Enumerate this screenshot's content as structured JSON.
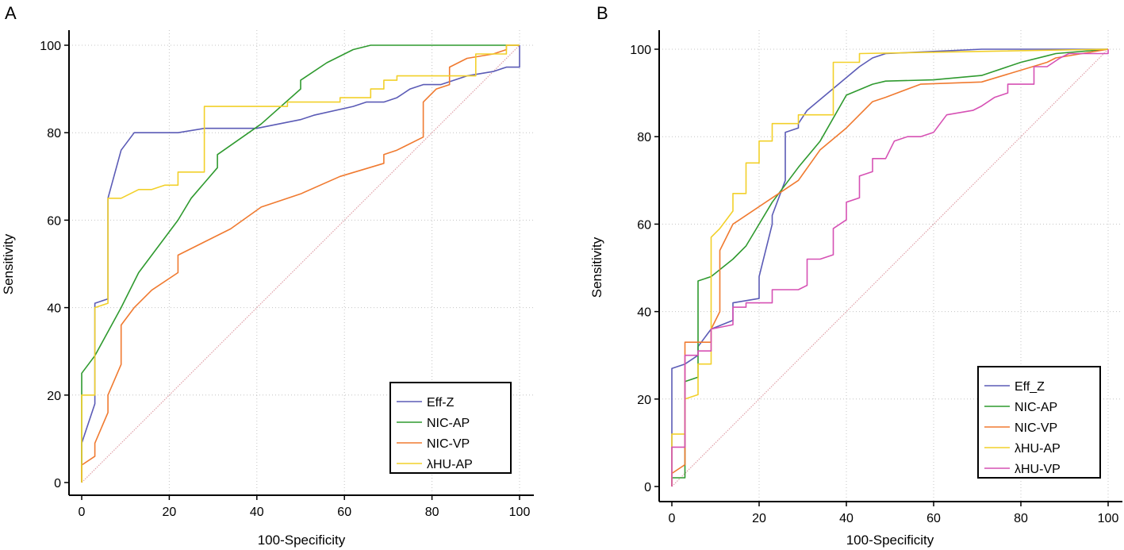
{
  "colors": {
    "eff_z": "#5b5bb6",
    "nic_ap": "#2f9a2f",
    "nic_vp": "#f07a30",
    "lhu_ap": "#f2d02a",
    "lhu_vp": "#d651b4",
    "reference": "#e0a0a8",
    "grid": "#c4c4c4",
    "axis": "#000000"
  },
  "chart_data": [
    {
      "type": "line",
      "panel_label": "A",
      "xlabel": "100-Specificity",
      "ylabel": "Sensitivity",
      "xlim": [
        0,
        100
      ],
      "ylim": [
        0,
        100
      ],
      "xticks": [
        "0",
        "20",
        "40",
        "60",
        "80",
        "100"
      ],
      "yticks": [
        "0",
        "20",
        "40",
        "60",
        "80",
        "100"
      ],
      "grid": true,
      "legend": "bottom-right",
      "reference_line": [
        [
          0,
          0
        ],
        [
          100,
          100
        ]
      ],
      "series": [
        {
          "name": "Eff-Z",
          "color_key": "eff_z",
          "points": [
            [
              0,
              0
            ],
            [
              0,
              9
            ],
            [
              3,
              18
            ],
            [
              3,
              41
            ],
            [
              6,
              42
            ],
            [
              6,
              65
            ],
            [
              9,
              76
            ],
            [
              12,
              80
            ],
            [
              22,
              80
            ],
            [
              28,
              81
            ],
            [
              40,
              81
            ],
            [
              50,
              83
            ],
            [
              53,
              84
            ],
            [
              62,
              86
            ],
            [
              65,
              87
            ],
            [
              69,
              87
            ],
            [
              72,
              88
            ],
            [
              75,
              90
            ],
            [
              78,
              91
            ],
            [
              82,
              91
            ],
            [
              85,
              92
            ],
            [
              88,
              93
            ],
            [
              94,
              94
            ],
            [
              97,
              95
            ],
            [
              100,
              95
            ],
            [
              100,
              100
            ]
          ]
        },
        {
          "name": "NIC-AP",
          "color_key": "nic_ap",
          "points": [
            [
              0,
              0
            ],
            [
              0,
              25
            ],
            [
              3,
              29
            ],
            [
              9,
              40
            ],
            [
              13,
              48
            ],
            [
              19,
              56
            ],
            [
              22,
              60
            ],
            [
              25,
              65
            ],
            [
              31,
              72
            ],
            [
              31,
              75
            ],
            [
              41,
              82
            ],
            [
              50,
              90
            ],
            [
              50,
              92
            ],
            [
              56,
              96
            ],
            [
              62,
              99
            ],
            [
              66,
              100
            ],
            [
              100,
              100
            ]
          ]
        },
        {
          "name": "NIC-VP",
          "color_key": "nic_vp",
          "points": [
            [
              0,
              0
            ],
            [
              0,
              4
            ],
            [
              3,
              6
            ],
            [
              3,
              9
            ],
            [
              6,
              16
            ],
            [
              6,
              20
            ],
            [
              9,
              27
            ],
            [
              9,
              36
            ],
            [
              12,
              40
            ],
            [
              16,
              44
            ],
            [
              22,
              48
            ],
            [
              22,
              52
            ],
            [
              28,
              55
            ],
            [
              34,
              58
            ],
            [
              41,
              63
            ],
            [
              50,
              66
            ],
            [
              59,
              70
            ],
            [
              69,
              73
            ],
            [
              69,
              75
            ],
            [
              72,
              76
            ],
            [
              78,
              79
            ],
            [
              78,
              87
            ],
            [
              81,
              90
            ],
            [
              84,
              91
            ],
            [
              84,
              95
            ],
            [
              88,
              97
            ],
            [
              94,
              98
            ],
            [
              97,
              99
            ],
            [
              97,
              100
            ],
            [
              100,
              100
            ]
          ]
        },
        {
          "name": "λHU-AP",
          "color_key": "lhu_ap",
          "points": [
            [
              0,
              0
            ],
            [
              0,
              20
            ],
            [
              3,
              20
            ],
            [
              3,
              40
            ],
            [
              6,
              41
            ],
            [
              6,
              65
            ],
            [
              9,
              65
            ],
            [
              13,
              67
            ],
            [
              16,
              67
            ],
            [
              19,
              68
            ],
            [
              22,
              68
            ],
            [
              22,
              71
            ],
            [
              28,
              71
            ],
            [
              28,
              86
            ],
            [
              47,
              86
            ],
            [
              47,
              87
            ],
            [
              59,
              87
            ],
            [
              59,
              88
            ],
            [
              66,
              88
            ],
            [
              66,
              90
            ],
            [
              69,
              90
            ],
            [
              69,
              92
            ],
            [
              72,
              92
            ],
            [
              72,
              93
            ],
            [
              84,
              93
            ],
            [
              90,
              93
            ],
            [
              90,
              98
            ],
            [
              97,
              98
            ],
            [
              97,
              100
            ],
            [
              100,
              100
            ]
          ]
        }
      ]
    },
    {
      "type": "line",
      "panel_label": "B",
      "xlabel": "100-Specificity",
      "ylabel": "Sensitivity",
      "xlim": [
        0,
        100
      ],
      "ylim": [
        0,
        100
      ],
      "xticks": [
        "0",
        "20",
        "40",
        "60",
        "80",
        "100"
      ],
      "yticks": [
        "0",
        "20",
        "40",
        "60",
        "80",
        "100"
      ],
      "grid": true,
      "legend": "bottom-right",
      "reference_line": [
        [
          0,
          0
        ],
        [
          100,
          100
        ]
      ],
      "series": [
        {
          "name": "Eff_Z",
          "color_key": "eff_z",
          "points": [
            [
              0,
              0
            ],
            [
              0,
              27
            ],
            [
              3,
              28
            ],
            [
              6,
              30
            ],
            [
              6,
              32
            ],
            [
              9,
              36
            ],
            [
              14,
              38
            ],
            [
              14,
              42
            ],
            [
              20,
              43
            ],
            [
              20,
              48
            ],
            [
              23,
              60
            ],
            [
              23,
              62
            ],
            [
              26,
              70
            ],
            [
              26,
              81
            ],
            [
              29,
              82
            ],
            [
              29,
              83
            ],
            [
              31,
              86
            ],
            [
              43,
              96
            ],
            [
              46,
              98
            ],
            [
              49,
              99
            ],
            [
              60,
              99.5
            ],
            [
              71,
              100
            ],
            [
              100,
              100
            ]
          ]
        },
        {
          "name": "NIC-AP",
          "color_key": "nic_ap",
          "points": [
            [
              0,
              0
            ],
            [
              0,
              2
            ],
            [
              3,
              2
            ],
            [
              3,
              24
            ],
            [
              6,
              25
            ],
            [
              6,
              47
            ],
            [
              9,
              48
            ],
            [
              14,
              52
            ],
            [
              17,
              55
            ],
            [
              20,
              60
            ],
            [
              23,
              65
            ],
            [
              29,
              73
            ],
            [
              34,
              79
            ],
            [
              40,
              89.5
            ],
            [
              46,
              92
            ],
            [
              49,
              92.7
            ],
            [
              60,
              93
            ],
            [
              71,
              94
            ],
            [
              80,
              97
            ],
            [
              86,
              98.5
            ],
            [
              88,
              99
            ],
            [
              100,
              100
            ]
          ]
        },
        {
          "name": "NIC-VP",
          "color_key": "nic_vp",
          "points": [
            [
              0,
              0
            ],
            [
              0,
              3
            ],
            [
              3,
              5
            ],
            [
              3,
              33
            ],
            [
              9,
              33
            ],
            [
              9,
              36
            ],
            [
              11,
              40
            ],
            [
              11,
              54
            ],
            [
              14,
              60
            ],
            [
              23,
              66
            ],
            [
              29,
              70
            ],
            [
              34,
              77
            ],
            [
              40,
              82
            ],
            [
              46,
              88
            ],
            [
              49,
              89
            ],
            [
              57,
              92
            ],
            [
              71,
              92.5
            ],
            [
              86,
              97
            ],
            [
              88,
              98
            ],
            [
              100,
              100
            ]
          ]
        },
        {
          "name": "λHU-AP",
          "color_key": "lhu_ap",
          "points": [
            [
              0,
              0
            ],
            [
              0,
              12
            ],
            [
              3,
              12
            ],
            [
              3,
              20
            ],
            [
              6,
              21
            ],
            [
              6,
              28
            ],
            [
              9,
              28
            ],
            [
              9,
              57
            ],
            [
              11,
              59
            ],
            [
              14,
              63
            ],
            [
              14,
              67
            ],
            [
              17,
              67
            ],
            [
              17,
              74
            ],
            [
              20,
              74
            ],
            [
              20,
              79
            ],
            [
              23,
              79
            ],
            [
              23,
              83
            ],
            [
              29,
              83
            ],
            [
              29,
              85
            ],
            [
              37,
              85
            ],
            [
              37,
              97
            ],
            [
              43,
              97
            ],
            [
              43,
              99
            ],
            [
              100,
              100
            ]
          ]
        },
        {
          "name": "λHU-VP",
          "color_key": "lhu_vp",
          "points": [
            [
              0,
              0
            ],
            [
              0,
              9
            ],
            [
              3,
              9
            ],
            [
              3,
              30
            ],
            [
              6,
              30
            ],
            [
              6,
              31
            ],
            [
              9,
              31
            ],
            [
              9,
              36
            ],
            [
              14,
              37
            ],
            [
              14,
              41
            ],
            [
              17,
              41
            ],
            [
              17,
              42
            ],
            [
              23,
              42
            ],
            [
              23,
              45
            ],
            [
              29,
              45
            ],
            [
              31,
              46
            ],
            [
              31,
              52
            ],
            [
              34,
              52
            ],
            [
              37,
              53
            ],
            [
              37,
              59
            ],
            [
              40,
              61
            ],
            [
              40,
              65
            ],
            [
              43,
              66
            ],
            [
              43,
              71
            ],
            [
              46,
              72
            ],
            [
              46,
              75
            ],
            [
              49,
              75
            ],
            [
              51,
              79
            ],
            [
              54,
              80
            ],
            [
              57,
              80
            ],
            [
              60,
              81
            ],
            [
              63,
              85
            ],
            [
              69,
              86
            ],
            [
              71,
              87
            ],
            [
              74,
              89
            ],
            [
              77,
              90
            ],
            [
              77,
              92
            ],
            [
              83,
              92
            ],
            [
              83,
              96
            ],
            [
              86,
              96
            ],
            [
              89,
              98
            ],
            [
              91,
              99
            ],
            [
              100,
              99
            ],
            [
              100,
              100
            ]
          ]
        }
      ]
    }
  ]
}
